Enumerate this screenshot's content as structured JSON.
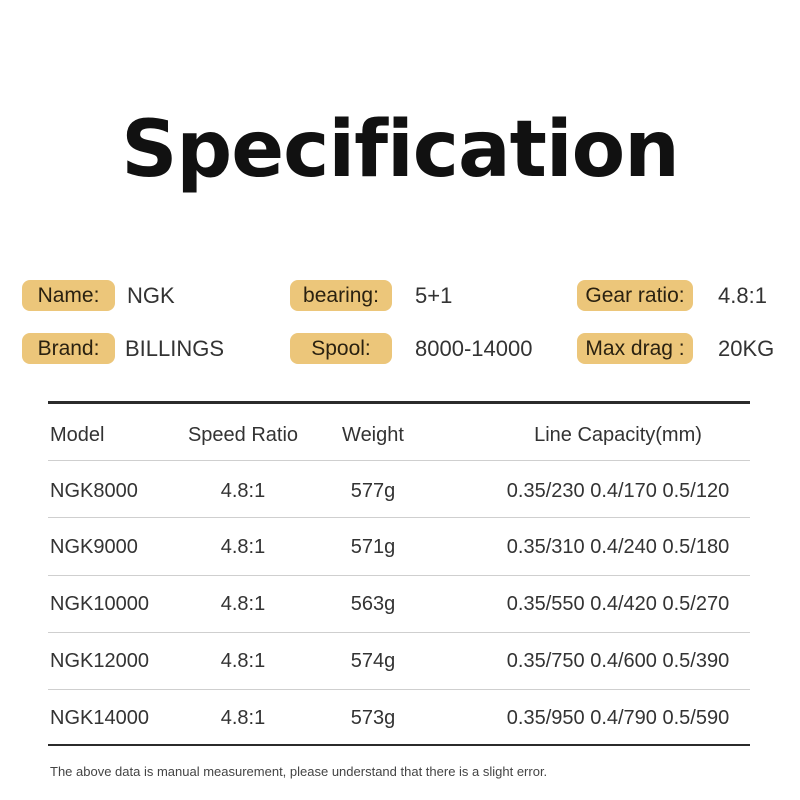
{
  "title": "Specification",
  "specs": [
    {
      "label": "Name:",
      "value": "NGK"
    },
    {
      "label": "bearing:",
      "value": "5+1"
    },
    {
      "label": "Gear ratio:",
      "value": "4.8:1"
    },
    {
      "label": "Brand:",
      "value": "BILLINGS"
    },
    {
      "label": "Spool:",
      "value": "8000-14000"
    },
    {
      "label": "Max drag :",
      "value": "20KG"
    }
  ],
  "accent_color": "#ecc67a",
  "table": {
    "headers": [
      "Model",
      "Speed Ratio",
      "Weight",
      "Line Capacity(mm)"
    ],
    "rows": [
      [
        "NGK8000",
        "4.8:1",
        "577g",
        "0.35/230 0.4/170 0.5/120"
      ],
      [
        "NGK9000",
        "4.8:1",
        "571g",
        "0.35/310 0.4/240 0.5/180"
      ],
      [
        "NGK10000",
        "4.8:1",
        "563g",
        "0.35/550 0.4/420 0.5/270"
      ],
      [
        "NGK12000",
        "4.8:1",
        "574g",
        "0.35/750 0.4/600 0.5/390"
      ],
      [
        "NGK14000",
        "4.8:1",
        "573g",
        "0.35/950 0.4/790 0.5/590"
      ]
    ]
  },
  "footnote": "The above data is manual measurement, please understand that there is a slight error."
}
